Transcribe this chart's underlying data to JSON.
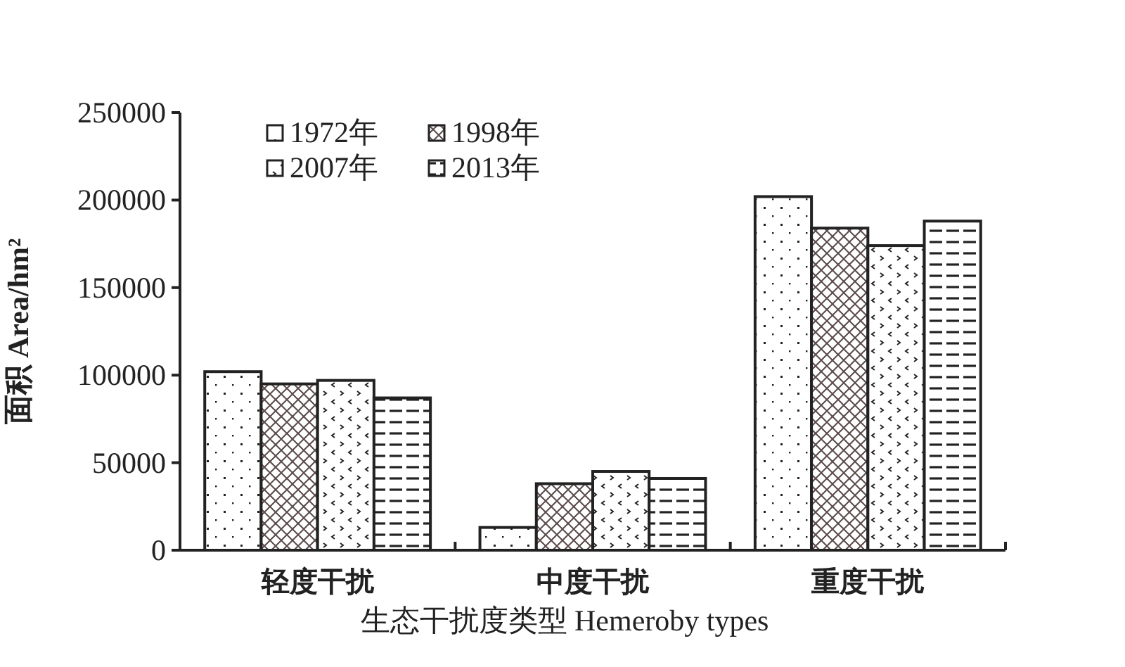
{
  "chart_data": {
    "type": "bar",
    "categories": [
      "轻度干扰",
      "中度干扰",
      "重度干扰"
    ],
    "series": [
      {
        "name": "1972年",
        "color": "#222222",
        "values": [
          102000,
          13000,
          202000
        ]
      },
      {
        "name": "1998年",
        "color": "#222222",
        "values": [
          95000,
          38000,
          184000
        ]
      },
      {
        "name": "2007年",
        "color": "#222222",
        "values": [
          97000,
          45000,
          174000
        ]
      },
      {
        "name": "2013年",
        "color": "#222222",
        "values": [
          87000,
          41000,
          188000
        ]
      }
    ],
    "xlabel": "生态干扰度类型 Hemeroby types",
    "ylabel": "面积 Area/hm²",
    "ylim": [
      0,
      250000
    ],
    "yticks": [
      0,
      50000,
      100000,
      150000,
      200000,
      250000
    ],
    "grid": false,
    "legend": "top left"
  }
}
